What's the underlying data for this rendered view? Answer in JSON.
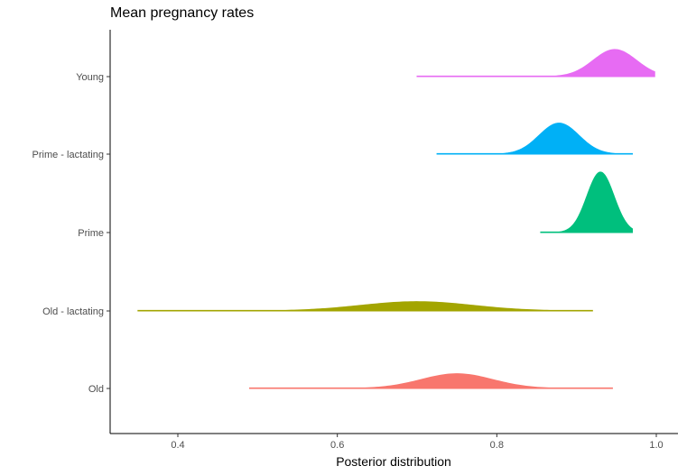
{
  "chart_data": {
    "type": "area",
    "subtype": "ridgeline-density",
    "title": "Mean pregnancy rates",
    "xlabel": "Posterior distribution",
    "ylabel": "",
    "xlim": [
      0.31,
      1.03
    ],
    "x_ticks": [
      0.4,
      0.6,
      0.8,
      1.0
    ],
    "x_tick_labels": [
      "0.4",
      "0.6",
      "0.8",
      "1.0"
    ],
    "grid": false,
    "legend": "none",
    "categories": [
      "Old",
      "Old - lactating",
      "Prime",
      "Prime - lactating",
      "Young"
    ],
    "series": [
      {
        "name": "Old",
        "color": "#F8766D",
        "range": [
          0.49,
          0.945
        ],
        "mode": 0.75,
        "sd": 0.045,
        "peak": 0.19
      },
      {
        "name": "Old - lactating",
        "color": "#A3A500",
        "range": [
          0.35,
          0.92
        ],
        "mode": 0.7,
        "sd": 0.07,
        "peak": 0.12
      },
      {
        "name": "Prime",
        "color": "#00BF7D",
        "range": [
          0.855,
          0.97
        ],
        "mode": 0.93,
        "sd": 0.017,
        "peak": 0.78
      },
      {
        "name": "Prime - lactating",
        "color": "#00B0F6",
        "range": [
          0.725,
          0.97
        ],
        "mode": 0.878,
        "sd": 0.025,
        "peak": 0.4
      },
      {
        "name": "Young",
        "color": "#E76BF3",
        "range": [
          0.7,
          0.998
        ],
        "mode": 0.948,
        "sd": 0.027,
        "peak": 0.35
      }
    ]
  }
}
